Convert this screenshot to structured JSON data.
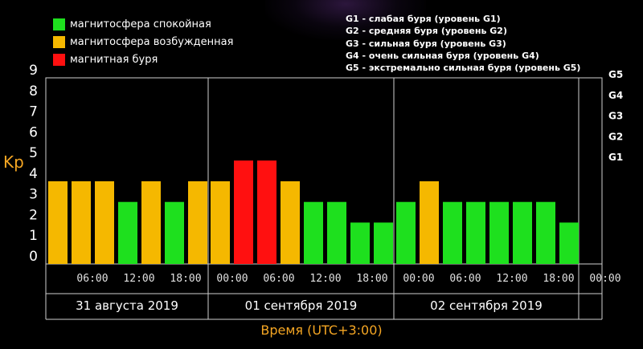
{
  "legend": [
    {
      "label": "магнитосфера спокойная",
      "color": "#1ee01e"
    },
    {
      "label": "магнитосфера возбужденная",
      "color": "#f5b800"
    },
    {
      "label": "магнитная буря",
      "color": "#ff1010"
    }
  ],
  "storm_levels": [
    "G1 - слабая буря (уровень G1)",
    "G2 - средняя буря (уровень G2)",
    "G3 - сильная буря (уровень G3)",
    "G4 - очень сильная буря (уровень G4)",
    "G5 - экстремально сильная буря (уровень G5)"
  ],
  "chart_data": {
    "type": "bar",
    "ylabel": "Kp",
    "xlabel": "Время (UTC+3:00)",
    "ylim": [
      0,
      9
    ],
    "yticks": [
      "0",
      "1",
      "2",
      "3",
      "4",
      "5",
      "6",
      "7",
      "8",
      "9"
    ],
    "right_ticks": [
      {
        "y": 5,
        "label": "G1"
      },
      {
        "y": 6,
        "label": "G2"
      },
      {
        "y": 7,
        "label": "G3"
      },
      {
        "y": 8,
        "label": "G4"
      },
      {
        "y": 9,
        "label": "G5"
      }
    ],
    "xticks": [
      "06:00",
      "12:00",
      "18:00",
      "00:00",
      "06:00",
      "12:00",
      "18:00",
      "00:00",
      "06:00",
      "12:00",
      "18:00",
      "00:00"
    ],
    "days": [
      "31 августа 2019",
      "01 сентября 2019",
      "02 сентября 2019"
    ],
    "values": [
      4,
      4,
      4,
      3,
      4,
      3,
      4,
      4,
      5,
      5,
      4,
      3,
      3,
      2,
      2,
      3,
      4,
      3,
      3,
      3,
      3,
      3,
      2
    ],
    "bar_status": [
      "excited",
      "excited",
      "excited",
      "quiet",
      "excited",
      "quiet",
      "excited",
      "excited",
      "storm",
      "storm",
      "excited",
      "quiet",
      "quiet",
      "quiet",
      "quiet",
      "quiet",
      "excited",
      "quiet",
      "quiet",
      "quiet",
      "quiet",
      "quiet",
      "quiet"
    ],
    "status_colors": {
      "quiet": "#1ee01e",
      "excited": "#f5b800",
      "storm": "#ff1010"
    },
    "grid": true
  }
}
